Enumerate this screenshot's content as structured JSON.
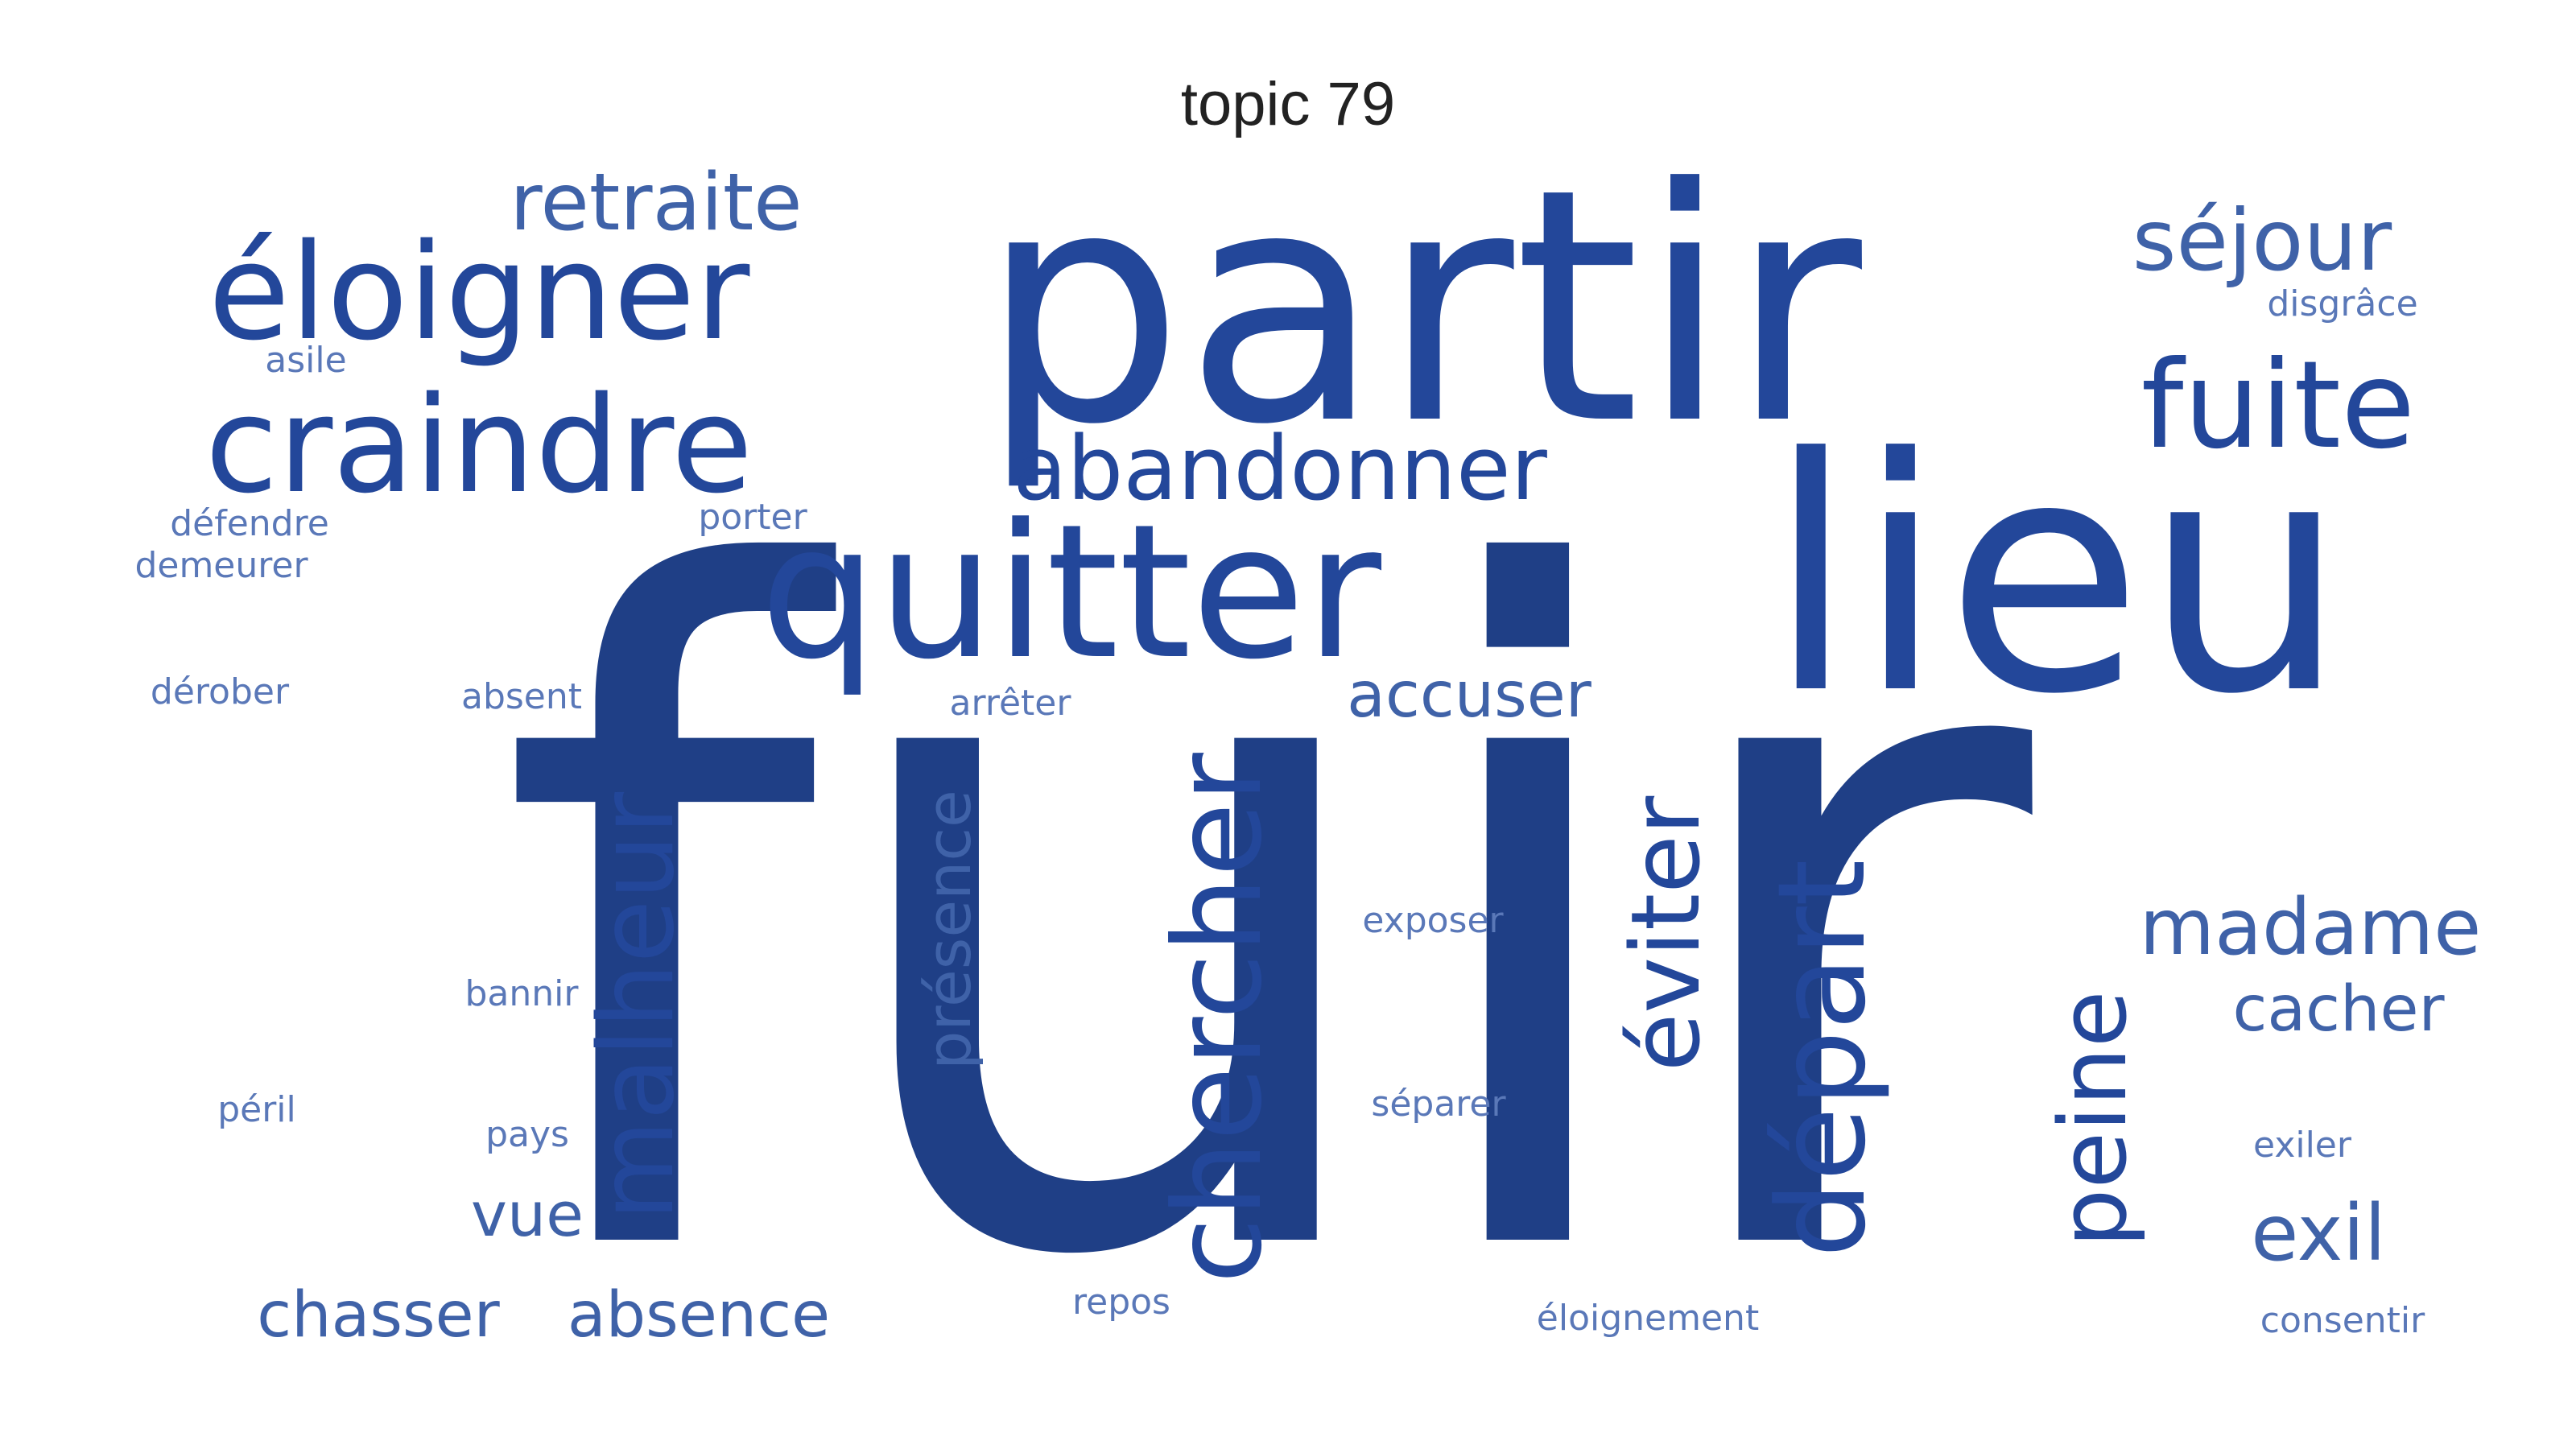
{
  "title": "topic 79",
  "colors": {
    "strong": "#1f3f86",
    "medium": "#23479a",
    "light": "#3f62a8",
    "faint": "#5a78b8"
  },
  "words": [
    {
      "text": "fuir",
      "weight": 1.0
    },
    {
      "text": "partir",
      "weight": 0.55
    },
    {
      "text": "lieu",
      "weight": 0.5
    },
    {
      "text": "quitter",
      "weight": 0.32
    },
    {
      "text": "éloigner",
      "weight": 0.22
    },
    {
      "text": "craindre",
      "weight": 0.22
    },
    {
      "text": "fuite",
      "weight": 0.2
    },
    {
      "text": "départ",
      "weight": 0.2
    },
    {
      "text": "chercher",
      "weight": 0.2
    },
    {
      "text": "malheur",
      "weight": 0.18
    },
    {
      "text": "éviter",
      "weight": 0.17
    },
    {
      "text": "peine",
      "weight": 0.16
    },
    {
      "text": "abandonner",
      "weight": 0.15
    },
    {
      "text": "séjour",
      "weight": 0.14
    },
    {
      "text": "retraite",
      "weight": 0.13
    },
    {
      "text": "madame",
      "weight": 0.13
    },
    {
      "text": "exil",
      "weight": 0.13
    },
    {
      "text": "présence",
      "weight": 0.11
    },
    {
      "text": "accuser",
      "weight": 0.11
    },
    {
      "text": "cacher",
      "weight": 0.11
    },
    {
      "text": "chasser",
      "weight": 0.11
    },
    {
      "text": "absence",
      "weight": 0.11
    },
    {
      "text": "vue",
      "weight": 0.1
    },
    {
      "text": "disgrâce",
      "weight": 0.07
    },
    {
      "text": "asile",
      "weight": 0.07
    },
    {
      "text": "défendre",
      "weight": 0.07
    },
    {
      "text": "demeurer",
      "weight": 0.07
    },
    {
      "text": "porter",
      "weight": 0.07
    },
    {
      "text": "dérober",
      "weight": 0.07
    },
    {
      "text": "absent",
      "weight": 0.07
    },
    {
      "text": "arrêter",
      "weight": 0.07
    },
    {
      "text": "exposer",
      "weight": 0.07
    },
    {
      "text": "bannir",
      "weight": 0.07
    },
    {
      "text": "séparer",
      "weight": 0.07
    },
    {
      "text": "péril",
      "weight": 0.07
    },
    {
      "text": "pays",
      "weight": 0.07
    },
    {
      "text": "exiler",
      "weight": 0.07
    },
    {
      "text": "repos",
      "weight": 0.07
    },
    {
      "text": "éloignement",
      "weight": 0.07
    },
    {
      "text": "consentir",
      "weight": 0.07
    }
  ]
}
